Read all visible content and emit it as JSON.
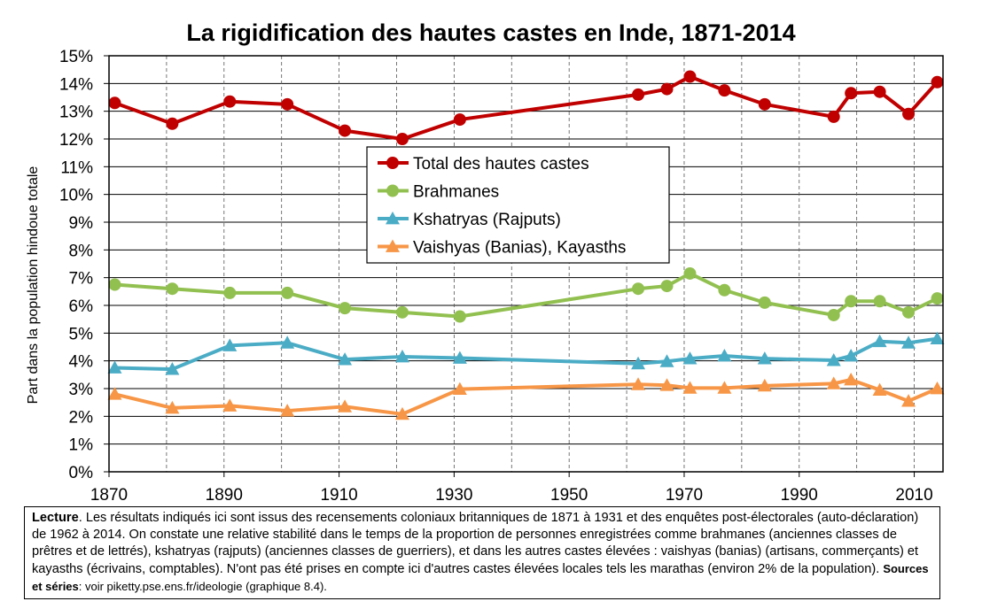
{
  "chart_data": {
    "type": "line",
    "title": "La rigidification des hautes castes en Inde, 1871-2014",
    "ylabel": "Part dans la population hindoue totale",
    "xlim": [
      1870,
      2015
    ],
    "ylim": [
      0,
      0.15
    ],
    "xticks": [
      "1870",
      "1890",
      "1910",
      "1930",
      "1950",
      "1970",
      "1990",
      "2010"
    ],
    "xtick_values": [
      1870,
      1890,
      1910,
      1930,
      1950,
      1970,
      1990,
      2010
    ],
    "yticks": [
      "0%",
      "1%",
      "2%",
      "3%",
      "4%",
      "5%",
      "6%",
      "7%",
      "8%",
      "9%",
      "10%",
      "11%",
      "12%",
      "13%",
      "14%",
      "15%"
    ],
    "ytick_values": [
      0,
      0.01,
      0.02,
      0.03,
      0.04,
      0.05,
      0.06,
      0.07,
      0.08,
      0.09,
      0.1,
      0.11,
      0.12,
      0.13,
      0.14,
      0.15
    ],
    "grid": true,
    "legend_position": "center",
    "x": [
      1871,
      1881,
      1891,
      1901,
      1911,
      1921,
      1931,
      1962,
      1967,
      1971,
      1977,
      1984,
      1996,
      1999,
      2004,
      2009,
      2014
    ],
    "series": [
      {
        "name": "Total des hautes castes",
        "color": "#c00000",
        "marker": "circle",
        "values": [
          0.133,
          0.1255,
          0.1335,
          0.1325,
          0.123,
          0.12,
          0.127,
          0.136,
          0.138,
          0.1425,
          0.1375,
          0.1325,
          0.128,
          0.1365,
          0.137,
          0.129,
          0.1405
        ]
      },
      {
        "name": "Brahmanes",
        "color": "#92c050",
        "marker": "circle",
        "values": [
          0.0675,
          0.066,
          0.0645,
          0.0645,
          0.059,
          0.0575,
          0.056,
          0.066,
          0.067,
          0.0715,
          0.0655,
          0.061,
          0.0565,
          0.0615,
          0.0615,
          0.0575,
          0.0625
        ]
      },
      {
        "name": "Kshatryas (Rajputs)",
        "color": "#4bacc6",
        "marker": "triangle",
        "values": [
          0.0375,
          0.037,
          0.0455,
          0.0465,
          0.0405,
          0.0415,
          0.041,
          0.039,
          0.0398,
          0.0408,
          0.0418,
          0.0408,
          0.0402,
          0.0418,
          0.047,
          0.0465,
          0.048
        ]
      },
      {
        "name": "Vaishyas (Banias), Kayasths",
        "color": "#f79646",
        "marker": "triangle",
        "values": [
          0.028,
          0.023,
          0.0238,
          0.022,
          0.0235,
          0.0208,
          0.0298,
          0.0315,
          0.0312,
          0.0302,
          0.0302,
          0.031,
          0.0318,
          0.0332,
          0.0295,
          0.0255,
          0.03
        ]
      }
    ]
  },
  "note": {
    "lead_label": "Lecture",
    "body": ". Les résultats indiqués ici sont issus des recensements coloniaux britanniques de 1871 à 1931 et des enquêtes post-électorales (auto-déclaration) de 1962 à 2014. On constate une relative stabilité dans le temps de la proportion de personnes enregistrées comme brahmanes (anciennes classes de prêtres et de lettrés), kshatryas (rajputs) (anciennes classes de guerriers), et dans les autres castes élevées : vaishyas (banias) (artisans, commerçants) et kayasths (écrivains, comptables). N'ont pas été prises en compte ici d'autres castes élevées locales tels les marathas (environ 2% de la population). ",
    "sources_label": "Sources et séries",
    "sources_text": ": voir piketty.pse.ens.fr/ideologie (graphique 8.4)."
  }
}
